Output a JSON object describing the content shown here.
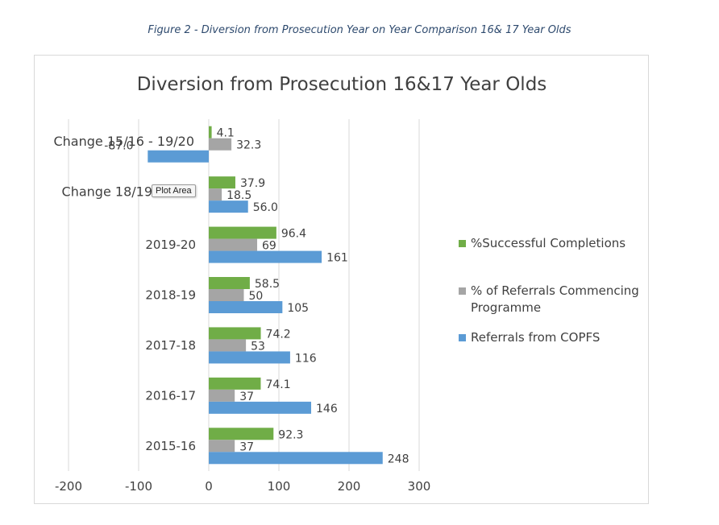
{
  "figure_caption": "Figure 2 - Diversion from Prosecution Year on Year Comparison 16& 17 Year Olds",
  "tooltip": "Plot Area",
  "colors": {
    "successful": "#70ad47",
    "commencing": "#a5a5a5",
    "referrals": "#5b9bd5",
    "gridline": "#d9d9d9"
  },
  "chart_data": {
    "type": "bar",
    "orientation": "horizontal",
    "title": "Diversion from Prosecution 16&17 Year Olds",
    "xlabel": "",
    "ylabel": "",
    "xlim": [
      -200,
      300
    ],
    "xticks": [
      "-200",
      "-100",
      "0",
      "100",
      "200",
      "300"
    ],
    "grid": true,
    "legend_position": "right",
    "categories": [
      "Change 15/16 - 19/20",
      "Change 18/19 - 19/20",
      "2019-20",
      "2018-19",
      "2017-18",
      "2016-17",
      "2015-16"
    ],
    "category_labels": [
      "Change 15/16 - 19/20",
      "Change 18/19",
      "2019-20",
      "2018-19",
      "2017-18",
      "2016-17",
      "2015-16"
    ],
    "series": [
      {
        "name": "%Successful Completions",
        "values": [
          4.1,
          37.9,
          96.4,
          58.5,
          74.2,
          74.1,
          92.3
        ],
        "labels": [
          "4.1",
          "37.9",
          "96.4",
          "58.5",
          "74.2",
          "74.1",
          "92.3"
        ]
      },
      {
        "name": "% of Referrals Commencing Programme",
        "values": [
          32.3,
          18.5,
          69,
          50,
          53,
          37,
          37
        ],
        "labels": [
          "32.3",
          "18.5",
          "69",
          "50",
          "53",
          "37",
          "37"
        ]
      },
      {
        "name": "Referrals from COPFS",
        "values": [
          -87.0,
          56.0,
          161,
          105,
          116,
          146,
          248
        ],
        "labels": [
          "-87.0",
          "56.0",
          "161",
          "105",
          "116",
          "146",
          "248"
        ]
      }
    ],
    "legend": [
      {
        "lines": [
          "%Successful Completions"
        ]
      },
      {
        "lines": [
          "% of Referrals Commencing",
          "Programme"
        ]
      },
      {
        "lines": [
          "Referrals from COPFS"
        ]
      }
    ]
  }
}
